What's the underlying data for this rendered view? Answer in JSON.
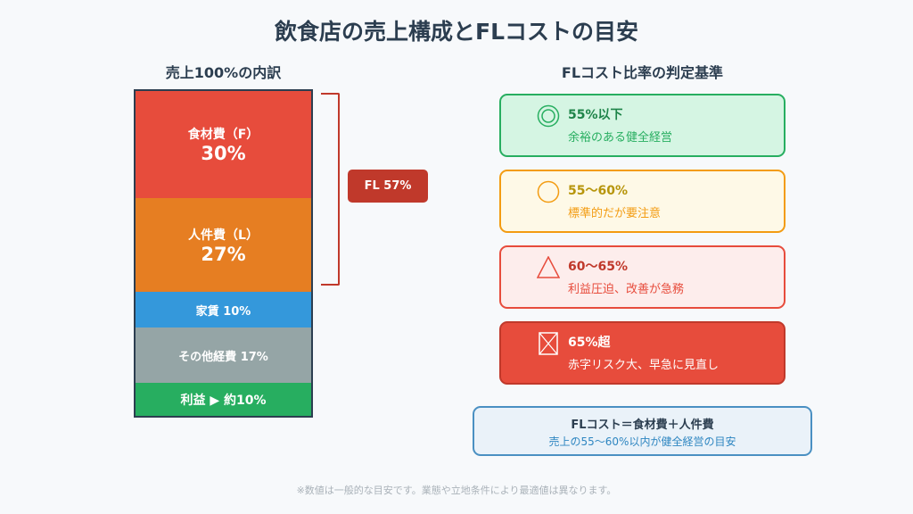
{
  "title": "飲食店の売上構成とFLコストの目安",
  "left": {
    "heading": "売上100%の内訳",
    "segments": [
      {
        "label": "食材費（F）",
        "value": "30%",
        "color": "#e74c3c"
      },
      {
        "label": "人件費（L）",
        "value": "27%",
        "color": "#e67e22"
      },
      {
        "label": "家賃 10%",
        "color": "#3498db"
      },
      {
        "label": "その他経費 17%",
        "color": "#95a5a6"
      },
      {
        "label": "利益 ▶ 約10%",
        "color": "#27ae60"
      }
    ],
    "fl_badge": "FL 57%"
  },
  "right": {
    "heading": "FLコスト比率の判定基準",
    "cards": [
      {
        "icon": "double-circle-icon",
        "range": "55%以下",
        "desc": "余裕のある健全経営",
        "bg": "#d5f5e3",
        "border": "#27ae60",
        "title_color": "#1e8449",
        "desc_color": "#27ae60"
      },
      {
        "icon": "circle-icon",
        "range": "55〜60%",
        "desc": "標準的だが要注意",
        "bg": "#fef9e7",
        "border": "#f39c12",
        "title_color": "#b7950b",
        "desc_color": "#f39c12"
      },
      {
        "icon": "triangle-icon",
        "range": "60〜65%",
        "desc": "利益圧迫、改善が急務",
        "bg": "#fdedec",
        "border": "#e74c3c",
        "title_color": "#c0392b",
        "desc_color": "#e74c3c"
      },
      {
        "icon": "cross-box-icon",
        "range": "65%超",
        "desc": "赤字リスク大、早急に見直し",
        "bg": "#e74c3c",
        "border": "#c0392b",
        "title_color": "#ffffff",
        "desc_color": "#ffffff"
      }
    ]
  },
  "formula": {
    "line1": "FLコスト＝食材費＋人件費",
    "line2": "売上の55〜60%以内が健全経営の目安"
  },
  "note": "※数値は一般的な目安です。業態や立地条件により最適値は異なります。"
}
